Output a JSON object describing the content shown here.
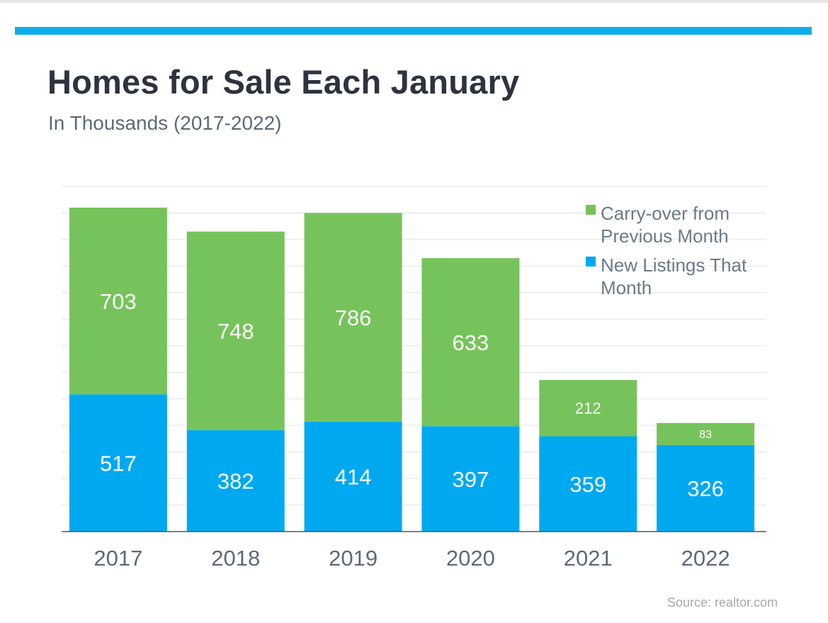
{
  "header": {
    "title": "Homes for Sale Each January",
    "subtitle": "In Thousands (2017-2022)"
  },
  "footer": {
    "source": "Source: realtor.com"
  },
  "colors": {
    "accent": "#0daeea",
    "title": "#2e3340",
    "subtitle": "#5b6a7a",
    "carryover": "#77c35b",
    "new_listings": "#00a9ef",
    "gridline": "#e2e2e2",
    "axis": "#555555",
    "tick_label": "#5b6a7a",
    "legend_text": "#6c7a89",
    "source": "#a9a9a9"
  },
  "chart_data": {
    "type": "bar",
    "stacked": true,
    "categories": [
      "2017",
      "2018",
      "2019",
      "2020",
      "2021",
      "2022"
    ],
    "series": [
      {
        "name": "New Listings That Month",
        "values": [
          517,
          382,
          414,
          397,
          359,
          326
        ]
      },
      {
        "name": "Carry-over from Previous Month",
        "values": [
          703,
          748,
          786,
          633,
          212,
          83
        ]
      }
    ],
    "legend": [
      {
        "lines": [
          "Carry-over from",
          "Previous Month"
        ],
        "series": 1
      },
      {
        "lines": [
          "New Listings That",
          "Month"
        ],
        "series": 0
      }
    ],
    "legend_position": "top-right",
    "ylim": [
      0,
      1300
    ],
    "grid": true,
    "data_labels": true
  }
}
